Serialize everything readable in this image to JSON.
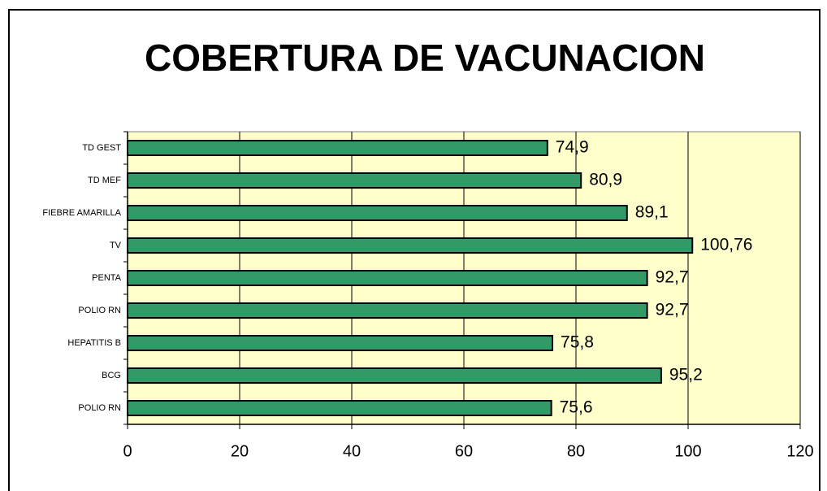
{
  "chart_data": {
    "type": "barh",
    "title": "COBERTURA DE VACUNACION",
    "categories": [
      "TD GEST",
      "TD MEF",
      "FIEBRE AMARILLA",
      "TV",
      "PENTA",
      "POLIO RN",
      "HEPATITIS B",
      "BCG",
      "POLIO RN"
    ],
    "values": [
      74.9,
      80.9,
      89.1,
      100.76,
      92.7,
      92.7,
      75.8,
      95.2,
      75.6
    ],
    "value_labels": [
      "74,9",
      "80,9",
      "89,1",
      "100,76",
      "92,7",
      "92,7",
      "75,8",
      "95,2",
      "75,6"
    ],
    "color": "#339966",
    "xlim": [
      0,
      120
    ],
    "xticks": [
      0,
      20,
      40,
      60,
      80,
      100,
      120
    ],
    "grid": true
  }
}
